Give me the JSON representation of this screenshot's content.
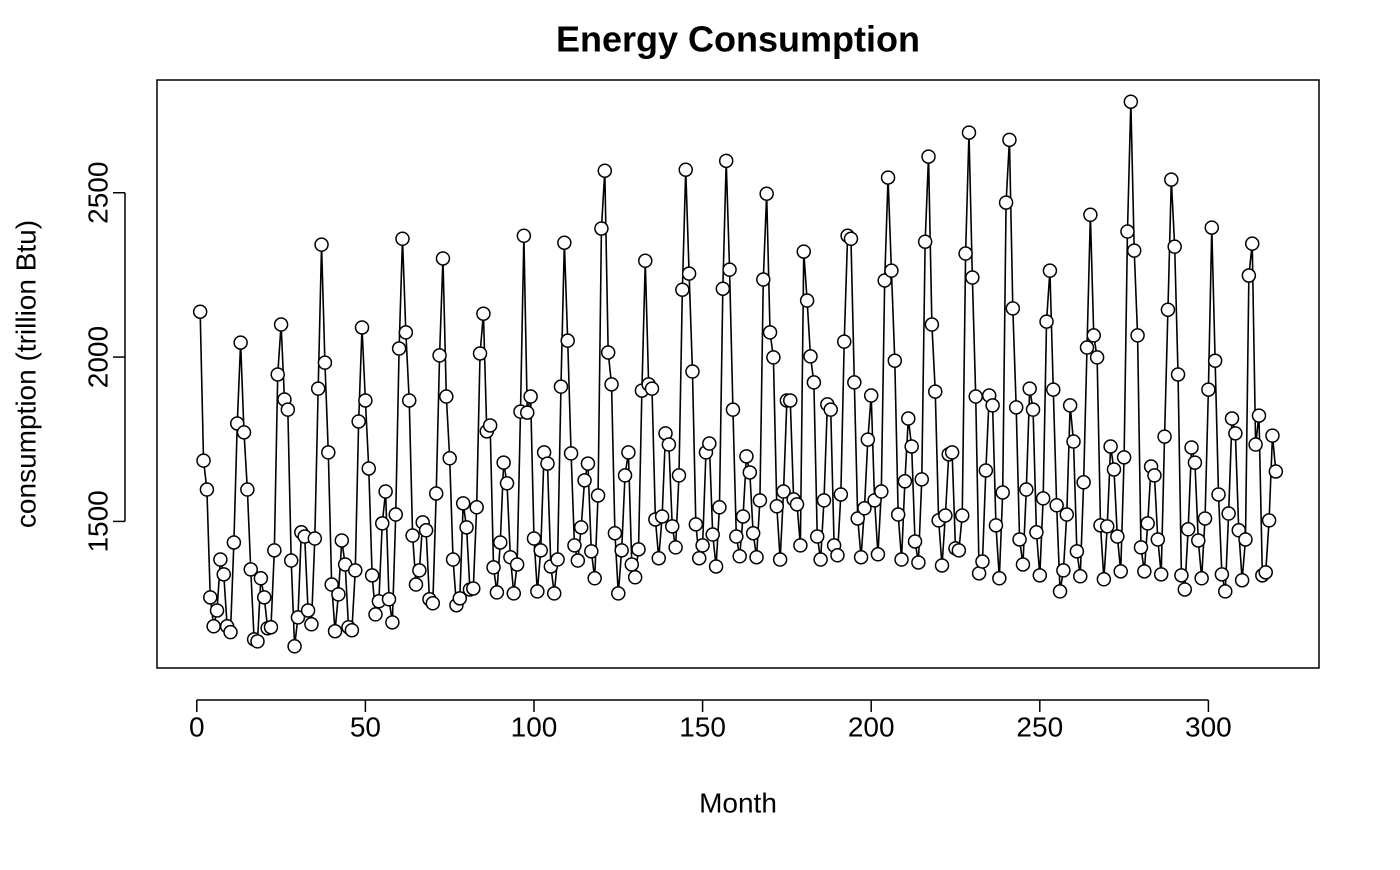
{
  "chart_data": {
    "type": "line",
    "title": "Energy Consumption",
    "x_label": "Month",
    "y_label": "consumption (trillion Btu)",
    "color": "#000000",
    "x": [
      1,
      2,
      3,
      4,
      5,
      6,
      7,
      8,
      9,
      10,
      11,
      12,
      13,
      14,
      15,
      16,
      17,
      18,
      19,
      20,
      21,
      22,
      23,
      24,
      25,
      26,
      27,
      28,
      29,
      30,
      31,
      32,
      33,
      34,
      35,
      36,
      37,
      38,
      39,
      40,
      41,
      42,
      43,
      44,
      45,
      46,
      47,
      48,
      49,
      50,
      51,
      52,
      53,
      54,
      55,
      56,
      57,
      58,
      59,
      60,
      61,
      62,
      63,
      64,
      65,
      66,
      67,
      68,
      69,
      70,
      71,
      72,
      73,
      74,
      75,
      76,
      77,
      78,
      79,
      80,
      81,
      82,
      83,
      84,
      85,
      86,
      87,
      88,
      89,
      90,
      91,
      92,
      93,
      94,
      95,
      96,
      97,
      98,
      99,
      100,
      101,
      102,
      103,
      104,
      105,
      106,
      107,
      108,
      109,
      110,
      111,
      112,
      113,
      114,
      115,
      116,
      117,
      118,
      119,
      120,
      121,
      122,
      123,
      124,
      125,
      126,
      127,
      128,
      129,
      130,
      131,
      132,
      133,
      134,
      135,
      136,
      137,
      138,
      139,
      140,
      141,
      142,
      143,
      144,
      145,
      146,
      147,
      148,
      149,
      150,
      151,
      152,
      153,
      154,
      155,
      156,
      157,
      158,
      159,
      160,
      161,
      162,
      163,
      164,
      165,
      166,
      167,
      168,
      169,
      170,
      171,
      172,
      173,
      174,
      175,
      176,
      177,
      178,
      179,
      180,
      181,
      182,
      183,
      184,
      185,
      186,
      187,
      188,
      189,
      190,
      191,
      192,
      193,
      194,
      195,
      196,
      197,
      198,
      199,
      200,
      201,
      202,
      203,
      204,
      205,
      206,
      207,
      208,
      209,
      210,
      211,
      212,
      213,
      214,
      215,
      216,
      217,
      218,
      219,
      220,
      221,
      222,
      223,
      224,
      225,
      226,
      227,
      228,
      229,
      230,
      231,
      232,
      233,
      234,
      235,
      236,
      237,
      238,
      239,
      240,
      241,
      242,
      243,
      244,
      245,
      246,
      247,
      248,
      249,
      250,
      251,
      252,
      253,
      254,
      255,
      256,
      257,
      258,
      259,
      260,
      261,
      262,
      263,
      264,
      265,
      266,
      267,
      268,
      269,
      270,
      271,
      272,
      273,
      274,
      275,
      276,
      277,
      278,
      279,
      280,
      281,
      282,
      283,
      284,
      285,
      286,
      287,
      288,
      289,
      290,
      291,
      292,
      293,
      294,
      295,
      296,
      297,
      298,
      299,
      300,
      301,
      302,
      303,
      304,
      305,
      306,
      307,
      308,
      309,
      310,
      311,
      312,
      313,
      314,
      315,
      316,
      317,
      318,
      319,
      320
    ],
    "values": [
      2138,
      1685,
      1597,
      1269,
      1181,
      1229,
      1384,
      1339,
      1181,
      1163,
      1436,
      1798,
      2044,
      1771,
      1597,
      1354,
      1141,
      1135,
      1327,
      1269,
      1175,
      1178,
      1412,
      1947,
      2099,
      1871,
      1840,
      1381,
      1120,
      1208,
      1467,
      1454,
      1229,
      1187,
      1448,
      1904,
      2342,
      1983,
      1710,
      1308,
      1166,
      1278,
      1442,
      1369,
      1178,
      1169,
      1351,
      1804,
      2090,
      1868,
      1661,
      1336,
      1217,
      1257,
      1494,
      1591,
      1263,
      1193,
      1521,
      2026,
      2360,
      2075,
      1868,
      1457,
      1308,
      1351,
      1497,
      1473,
      1263,
      1251,
      1585,
      2005,
      2300,
      1880,
      1692,
      1384,
      1245,
      1266,
      1555,
      1482,
      1293,
      1296,
      1543,
      2011,
      2132,
      1774,
      1792,
      1360,
      1284,
      1436,
      1679,
      1616,
      1391,
      1281,
      1369,
      1834,
      2369,
      1831,
      1880,
      1448,
      1287,
      1412,
      1710,
      1676,
      1363,
      1281,
      1384,
      1910,
      2348,
      2050,
      1707,
      1427,
      1381,
      1482,
      1625,
      1676,
      1409,
      1327,
      1579,
      2391,
      2567,
      2014,
      1917,
      1464,
      1281,
      1412,
      1640,
      1710,
      1369,
      1330,
      1415,
      1898,
      2293,
      1917,
      1904,
      1506,
      1388,
      1515,
      1768,
      1734,
      1485,
      1421,
      1640,
      2205,
      2570,
      2254,
      1956,
      1491,
      1388,
      1427,
      1710,
      1737,
      1460,
      1363,
      1543,
      2208,
      2597,
      2266,
      1840,
      1454,
      1394,
      1515,
      1698,
      1649,
      1464,
      1391,
      1564,
      2236,
      2497,
      2075,
      1999,
      1546,
      1384,
      1591,
      1868,
      1868,
      1567,
      1552,
      1427,
      2321,
      2172,
      2002,
      1923,
      1454,
      1384,
      1564,
      1856,
      1840,
      1427,
      1397,
      1582,
      2047,
      2369,
      2360,
      1923,
      1509,
      1391,
      1540,
      1749,
      1883,
      1564,
      1400,
      1591,
      2233,
      2546,
      2263,
      1989,
      1521,
      1384,
      1622,
      1813,
      1728,
      1439,
      1375,
      1628,
      2351,
      2610,
      2099,
      1895,
      1503,
      1366,
      1518,
      1704,
      1710,
      1418,
      1412,
      1518,
      2315,
      2683,
      2242,
      1880,
      1342,
      1378,
      1655,
      1883,
      1853,
      1488,
      1327,
      1588,
      2470,
      2661,
      2148,
      1847,
      1445,
      1369,
      1597,
      1904,
      1840,
      1467,
      1336,
      1570,
      2108,
      2263,
      1901,
      1549,
      1287,
      1351,
      1521,
      1853,
      1743,
      1409,
      1333,
      1619,
      2029,
      2433,
      2066,
      1999,
      1488,
      1324,
      1485,
      1728,
      1658,
      1454,
      1348,
      1695,
      2382,
      2777,
      2324,
      2066,
      1421,
      1348,
      1494,
      1667,
      1640,
      1445,
      1339,
      1758,
      2144,
      2540,
      2336,
      1947,
      1336,
      1293,
      1476,
      1725,
      1679,
      1442,
      1327,
      1509,
      1901,
      2394,
      1989,
      1582,
      1339,
      1287,
      1524,
      1813,
      1768,
      1473,
      1321,
      1445,
      2248,
      2345,
      1734,
      1822,
      1336,
      1345,
      1503,
      1761,
      1652
    ],
    "xlim": [
      -11.8,
      332.8
    ],
    "xticks": [
      0,
      50,
      100,
      150,
      200,
      250,
      300
    ],
    "ylim": [
      1054,
      2843
    ],
    "yticks": [
      1500,
      2000,
      2500
    ],
    "grid": false
  }
}
